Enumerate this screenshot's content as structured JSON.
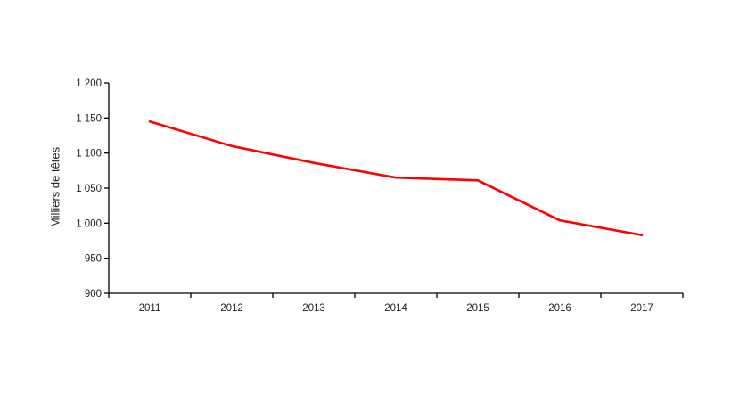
{
  "chart_data": {
    "type": "line",
    "title": "",
    "xlabel": "",
    "ylabel": "Milliers de têtes",
    "categories": [
      "2011",
      "2012",
      "2013",
      "2014",
      "2015",
      "2016",
      "2017"
    ],
    "series": [
      {
        "values": [
          1145,
          1110,
          1086,
          1065,
          1061,
          1004,
          983
        ],
        "color": "#ff0000"
      }
    ],
    "ylim": [
      900,
      1200
    ],
    "ytick_step": 50,
    "ytick_labels": [
      "900",
      "950",
      "1 000",
      "1 050",
      "1 100",
      "1 150",
      "1 200"
    ],
    "grid": false,
    "legend": "none",
    "axis_color": "#000000",
    "text_color": "#1f1f1f",
    "background": "#ffffff"
  }
}
